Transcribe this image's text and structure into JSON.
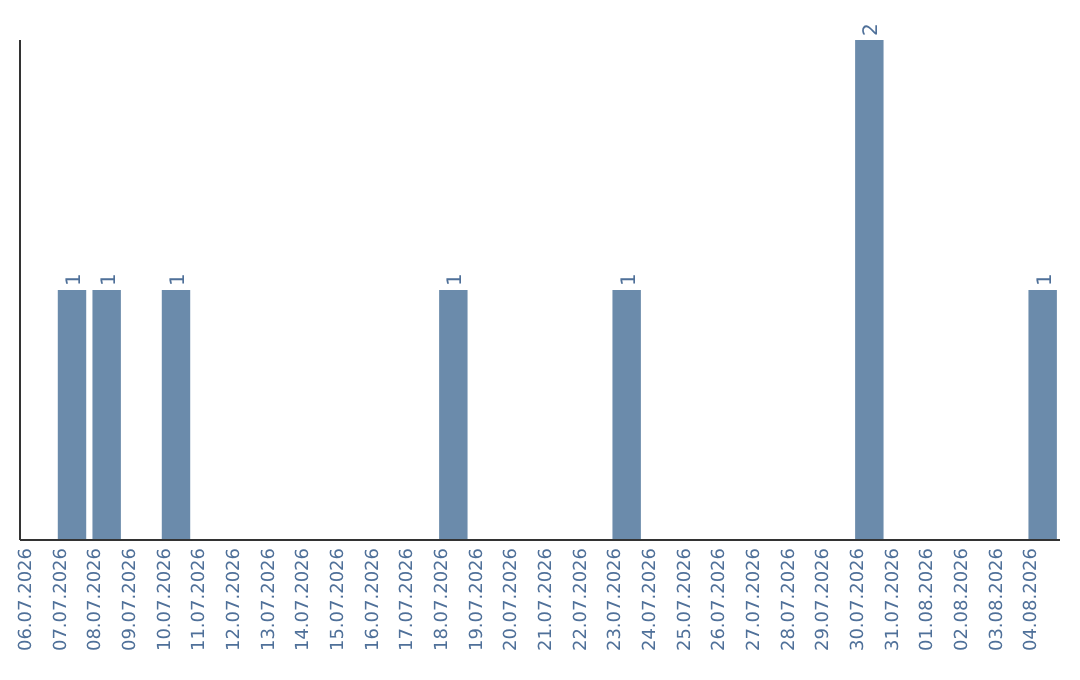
{
  "chart_data": {
    "type": "bar",
    "categories": [
      "06.07.2026",
      "07.07.2026",
      "08.07.2026",
      "09.07.2026",
      "10.07.2026",
      "11.07.2026",
      "12.07.2026",
      "13.07.2026",
      "14.07.2026",
      "15.07.2026",
      "16.07.2026",
      "17.07.2026",
      "18.07.2026",
      "19.07.2026",
      "20.07.2026",
      "21.07.2026",
      "22.07.2026",
      "23.07.2026",
      "24.07.2026",
      "25.07.2026",
      "26.07.2026",
      "27.07.2026",
      "28.07.2026",
      "29.07.2026",
      "30.07.2026",
      "31.07.2026",
      "01.08.2026",
      "02.08.2026",
      "03.08.2026",
      "04.08.2026"
    ],
    "values": [
      0,
      1,
      1,
      0,
      1,
      0,
      0,
      0,
      0,
      0,
      0,
      0,
      1,
      0,
      0,
      0,
      0,
      1,
      0,
      0,
      0,
      0,
      0,
      0,
      2,
      0,
      0,
      0,
      0,
      1
    ],
    "value_labels": [
      null,
      "1",
      "1",
      null,
      "1",
      null,
      null,
      null,
      null,
      null,
      null,
      null,
      "1",
      null,
      null,
      null,
      null,
      "1",
      null,
      null,
      null,
      null,
      null,
      null,
      "2",
      null,
      null,
      null,
      null,
      "1"
    ],
    "color": "#6b8bab",
    "ylim": [
      0,
      2
    ],
    "tick_labels": "x"
  }
}
